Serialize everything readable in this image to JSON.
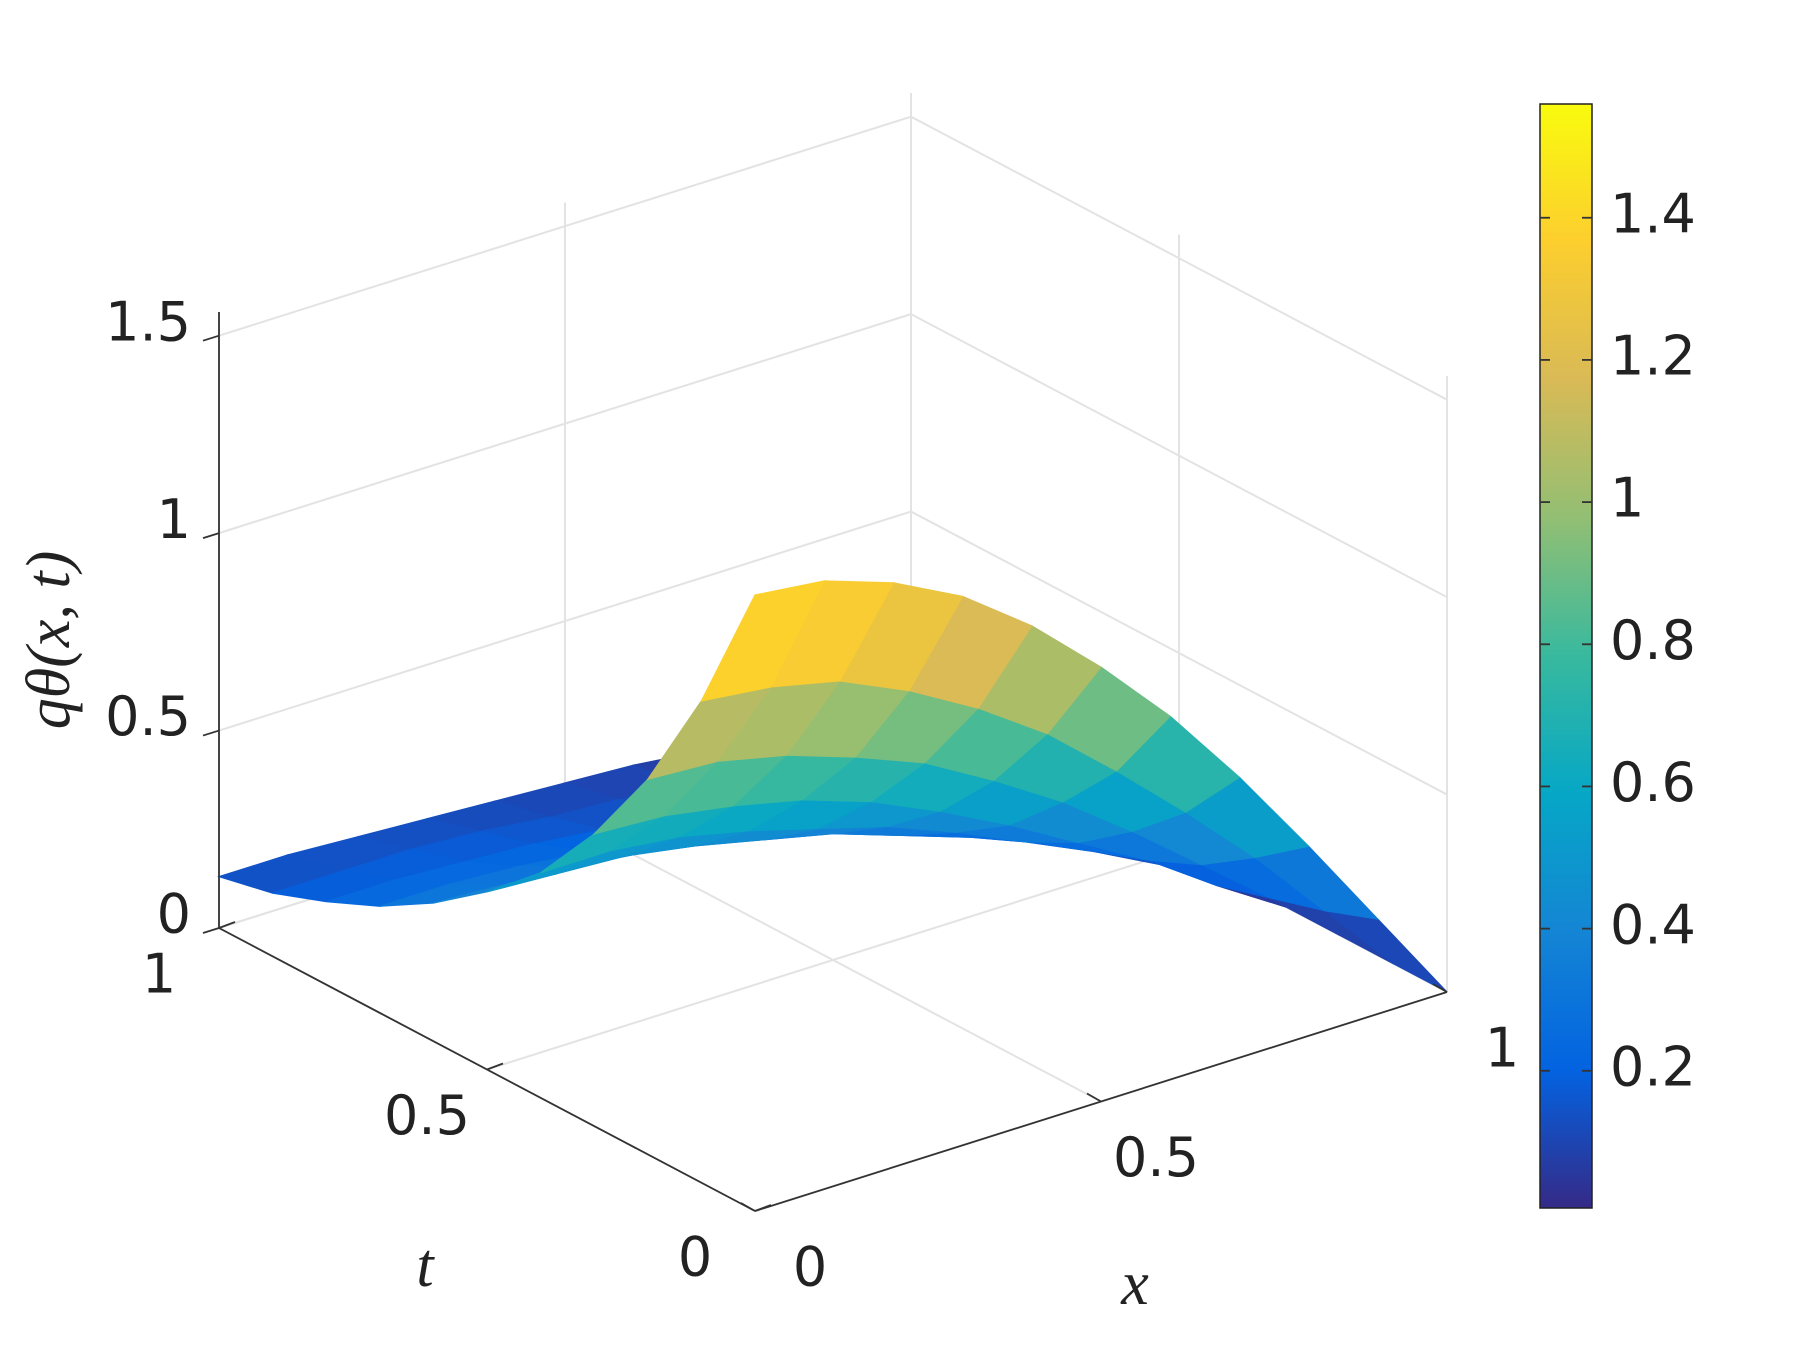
{
  "chart_data": {
    "type": "surface",
    "xlabel": "x",
    "ylabel": "t",
    "zlabel": "qθ(x, t)",
    "x": [
      0,
      0.1,
      0.2,
      0.3,
      0.4,
      0.5,
      0.6,
      0.7,
      0.8,
      0.9,
      1
    ],
    "y": [
      0,
      0.1,
      0.2,
      0.3,
      0.4,
      0.5,
      0.6,
      0.7,
      0.8,
      0.9,
      1
    ],
    "z": [
      [
        1.56,
        1.54,
        1.48,
        1.39,
        1.26,
        1.1,
        0.92,
        0.71,
        0.48,
        0.24,
        0
      ],
      [
        1.22,
        1.2,
        1.16,
        1.08,
        0.98,
        0.86,
        0.71,
        0.55,
        0.38,
        0.19,
        0
      ],
      [
        0.95,
        0.94,
        0.9,
        0.84,
        0.77,
        0.67,
        0.56,
        0.43,
        0.29,
        0.15,
        0
      ],
      [
        0.74,
        0.73,
        0.7,
        0.66,
        0.6,
        0.52,
        0.43,
        0.33,
        0.23,
        0.11,
        0
      ],
      [
        0.57,
        0.57,
        0.55,
        0.51,
        0.46,
        0.41,
        0.34,
        0.26,
        0.18,
        0.09,
        0
      ],
      [
        0.45,
        0.44,
        0.43,
        0.4,
        0.36,
        0.32,
        0.26,
        0.2,
        0.14,
        0.07,
        0
      ],
      [
        0.35,
        0.34,
        0.33,
        0.31,
        0.28,
        0.25,
        0.2,
        0.16,
        0.11,
        0.05,
        0
      ],
      [
        0.27,
        0.27,
        0.26,
        0.24,
        0.22,
        0.19,
        0.16,
        0.12,
        0.08,
        0.04,
        0
      ],
      [
        0.21,
        0.21,
        0.2,
        0.19,
        0.17,
        0.15,
        0.12,
        0.1,
        0.07,
        0.03,
        0
      ],
      [
        0.16,
        0.16,
        0.16,
        0.15,
        0.13,
        0.12,
        0.1,
        0.07,
        0.05,
        0.03,
        0
      ],
      [
        0.13,
        0.13,
        0.12,
        0.11,
        0.1,
        0.09,
        0.08,
        0.06,
        0.04,
        0.02,
        0
      ]
    ],
    "xlim": [
      0,
      1
    ],
    "xticks": [
      0,
      0.5,
      1
    ],
    "ylim": [
      0,
      1
    ],
    "yticks": [
      0,
      0.5,
      1
    ],
    "zlim": [
      0,
      1.56
    ],
    "zticks": [
      0,
      0.5,
      1,
      1.5
    ],
    "colormap": "parula",
    "clim": [
      0.007,
      1.56
    ],
    "cticks": [
      0.2,
      0.4,
      0.6,
      0.8,
      1,
      1.2,
      1.4
    ],
    "grid": true
  }
}
